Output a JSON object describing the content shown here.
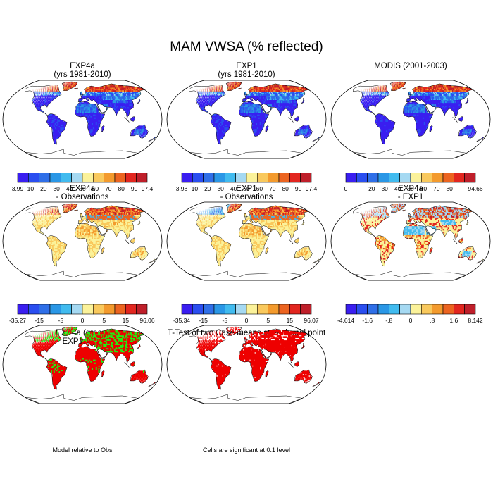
{
  "figure": {
    "title": "MAM VWSA (% reflected)"
  },
  "panels": [
    {
      "id": "exp4a",
      "title": [
        "EXP4a",
        "(yrs 1981-2010)"
      ],
      "palette": "abs",
      "scheme": "abs-model",
      "colorbar": {
        "labels": [
          "3.99",
          "10",
          "20",
          "30",
          "40",
          "50",
          "60",
          "70",
          "80",
          "90",
          "97.4"
        ]
      }
    },
    {
      "id": "exp1",
      "title": [
        "EXP1",
        "(yrs 1981-2010)"
      ],
      "palette": "abs",
      "scheme": "abs-model",
      "colorbar": {
        "labels": [
          "3.98",
          "10",
          "20",
          "30",
          "40",
          "50",
          "60",
          "70",
          "80",
          "90",
          "97.4"
        ]
      }
    },
    {
      "id": "modis",
      "title": [
        "MODIS (2001-2003)"
      ],
      "palette": "abs",
      "scheme": "abs-obs",
      "colorbar": {
        "labels": [
          "0",
          "",
          "20",
          "30",
          "40",
          "50",
          "60",
          "70",
          "80",
          "",
          "94.66"
        ]
      }
    },
    {
      "id": "exp4a-obs",
      "title": [
        "EXP4a",
        "- Observations"
      ],
      "palette": "diff",
      "scheme": "diff-a",
      "colorbar": {
        "labels": [
          "-35.27",
          "",
          "-15",
          "",
          "-5",
          "",
          "0",
          "",
          "5",
          "",
          "15",
          "",
          "96.06"
        ]
      }
    },
    {
      "id": "exp1-obs",
      "title": [
        "EXP1",
        "- Observations"
      ],
      "palette": "diff",
      "scheme": "diff-b",
      "colorbar": {
        "labels": [
          "-35.34",
          "",
          "-15",
          "",
          "-5",
          "",
          "0",
          "",
          "5",
          "",
          "15",
          "",
          "96.07"
        ]
      }
    },
    {
      "id": "exp4a-exp1",
      "title": [
        "EXP4a",
        "- EXP1"
      ],
      "palette": "diff",
      "scheme": "diff-c",
      "colorbar": {
        "labels": [
          "-4.614",
          "",
          "-1.6",
          "",
          "-.8",
          "",
          "0",
          "",
          ".8",
          "",
          "1.6",
          "",
          "8.142"
        ]
      }
    },
    {
      "id": "green-red",
      "title": [
        "EXP4a (green)",
        "EXP1 (red)"
      ],
      "scheme": "greenred",
      "note": "Model relative to Obs"
    },
    {
      "id": "ttest",
      "title": [
        "T-Test of two Case means at each grid point"
      ],
      "scheme": "ttest",
      "note": "Cells are significant at 0.1 level"
    }
  ],
  "palettes": {
    "abs": [
      "#3a1ef0",
      "#2a4ef0",
      "#2f6fe8",
      "#2a97e6",
      "#41bbef",
      "#a5d9f2",
      "#fbf29a",
      "#f9c95d",
      "#f39a2d",
      "#ec6420",
      "#e2261f",
      "#bf1f2a"
    ],
    "diff": [
      "#3a1ef0",
      "#2a4ef0",
      "#2f6fe8",
      "#2a97e6",
      "#41bbef",
      "#a5d9f2",
      "#fbf29a",
      "#f9c95d",
      "#f39a2d",
      "#ec6420",
      "#e2261f",
      "#bf1f2a"
    ]
  },
  "chart_data": {
    "type": "heatmap",
    "title": "MAM VWSA (% reflected)",
    "map_projection": "Robinson (global)",
    "variable": "VWSA",
    "season": "MAM",
    "units": "% reflected",
    "panels": [
      {
        "name": "EXP4a (yrs 1981-2010)",
        "min": 3.99,
        "max": 97.4,
        "levels": [
          10,
          20,
          30,
          40,
          50,
          60,
          70,
          80,
          90
        ]
      },
      {
        "name": "EXP1 (yrs 1981-2010)",
        "min": 3.98,
        "max": 97.4,
        "levels": [
          10,
          20,
          30,
          40,
          50,
          60,
          70,
          80,
          90
        ]
      },
      {
        "name": "MODIS (2001-2003)",
        "min": 0,
        "max": 94.66,
        "levels": [
          20,
          30,
          40,
          50,
          60,
          70,
          80
        ]
      },
      {
        "name": "EXP4a - Observations",
        "min": -35.27,
        "max": 96.06,
        "levels": [
          -15,
          -5,
          0,
          5,
          15
        ]
      },
      {
        "name": "EXP1 - Observations",
        "min": -35.34,
        "max": 96.07,
        "levels": [
          -15,
          -5,
          0,
          5,
          15
        ]
      },
      {
        "name": "EXP4a - EXP1",
        "min": -4.614,
        "max": 8.142,
        "levels": [
          -1.6,
          -0.8,
          0,
          0.8,
          1.6
        ]
      },
      {
        "name": "EXP4a (green) EXP1 (red)",
        "note": "Model relative to Obs"
      },
      {
        "name": "T-Test of two Case means at each grid point",
        "note": "Cells are significant at 0.1 level"
      }
    ]
  }
}
